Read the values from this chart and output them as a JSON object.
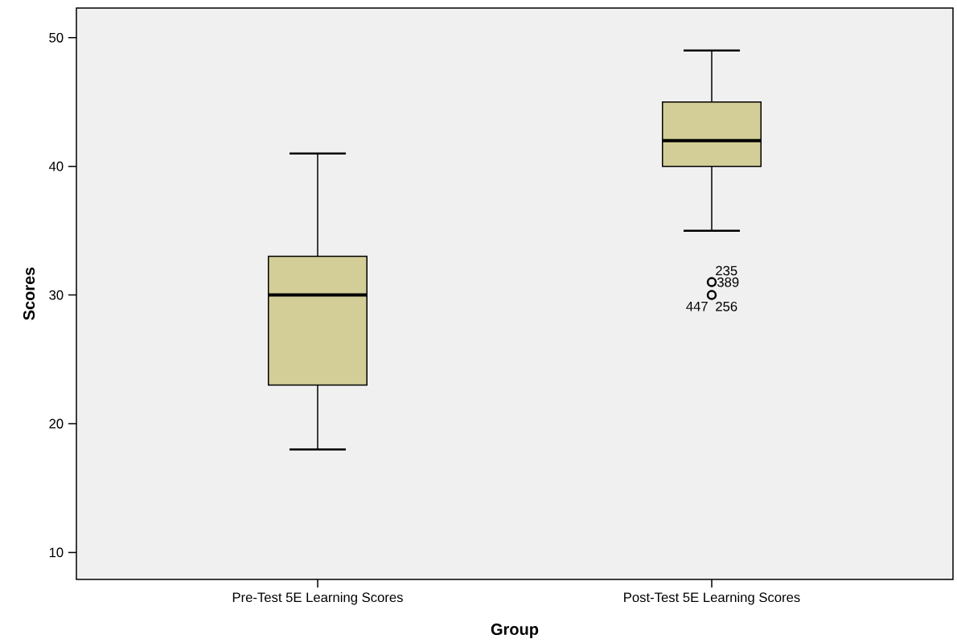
{
  "chart_data": {
    "type": "box",
    "xlabel": "Group",
    "ylabel": "Scores",
    "categories": [
      "Pre-Test 5E Learning Scores",
      "Post-Test 5E Learning Scores"
    ],
    "boxes": [
      {
        "low": 18,
        "q1": 23,
        "median": 30,
        "q3": 33,
        "high": 41
      },
      {
        "low": 35,
        "q1": 40,
        "median": 42,
        "q3": 45,
        "high": 49,
        "outliers": [
          31,
          30
        ]
      }
    ],
    "color": "#d3ce97",
    "ylim": [
      7.9,
      52.3
    ],
    "yticks": [
      10,
      20,
      30,
      40,
      50
    ],
    "grid": false,
    "annotations": [
      "235",
      "389",
      "447",
      "256"
    ]
  }
}
